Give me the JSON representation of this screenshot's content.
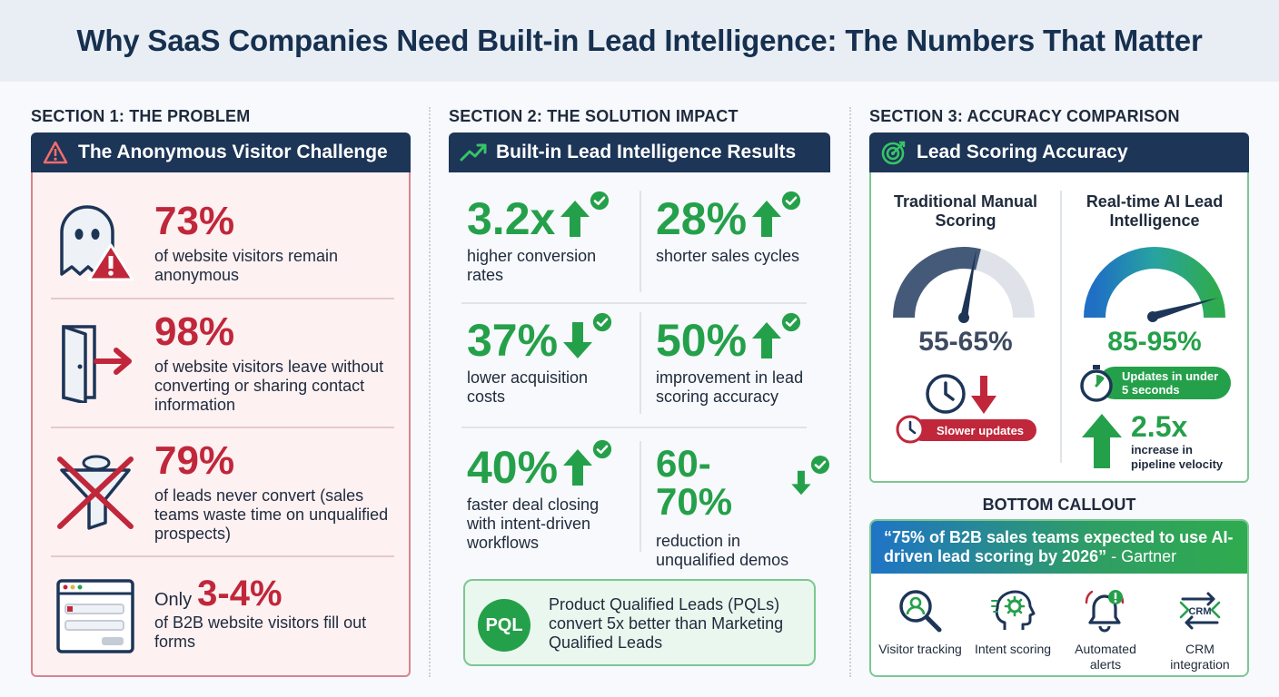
{
  "title": "Why SaaS Companies Need Built-in Lead Intelligence: The Numbers That Matter",
  "section1": {
    "label": "SECTION 1: THE PROBLEM",
    "header": "The Anonymous Visitor Challenge",
    "items": [
      {
        "value": "73%",
        "text": "of website visitors remain anonymous",
        "icon": "ghost-warning-icon"
      },
      {
        "value": "98%",
        "text": "of website visitors leave without converting or sharing contact information",
        "icon": "door-exit-icon"
      },
      {
        "value": "79%",
        "text": "of leads never convert (sales teams waste time on unqualified prospects)",
        "icon": "crossed-funnel-icon"
      },
      {
        "prefix": "Only",
        "value": "3-4%",
        "text": "of B2B website visitors fill out forms",
        "icon": "web-form-icon"
      }
    ],
    "colors": {
      "accent": "#c0273a",
      "panel_bg": "#fdf1f2"
    }
  },
  "section2": {
    "label": "SECTION 2: THE SOLUTION IMPACT",
    "header": "Built-in Lead Intelligence Results",
    "stats": [
      {
        "value": "3.2x",
        "text": "higher conversion rates",
        "direction": "up"
      },
      {
        "value": "28%",
        "text": "shorter sales cycles",
        "direction": "up"
      },
      {
        "value": "37%",
        "text": "lower acquisition costs",
        "direction": "down"
      },
      {
        "value": "50%",
        "text": "improvement in lead scoring accuracy",
        "direction": "up"
      },
      {
        "value": "40%",
        "text": "faster deal closing with intent-driven workflows",
        "direction": "up"
      },
      {
        "value": "60-70%",
        "text": "reduction in unqualified demos",
        "direction": "down"
      }
    ],
    "pql": {
      "badge": "PQL",
      "text": "Product Qualified Leads (PQLs) convert 5x better than Marketing Qualified Leads"
    },
    "colors": {
      "accent": "#25a04a"
    }
  },
  "section3": {
    "label": "SECTION 3: ACCURACY COMPARISON",
    "header": "Lead Scoring Accuracy",
    "traditional": {
      "title": "Traditional Manual Scoring",
      "range": "55-65%",
      "pill": "Slower updates"
    },
    "ai": {
      "title": "Real-time AI Lead Intelligence",
      "range": "85-95%",
      "pill": "Updates in under 5 seconds",
      "multiplier": "2.5x",
      "multiplier_text": "increase in pipeline velocity"
    }
  },
  "bottom": {
    "label": "BOTTOM CALLOUT",
    "quote": "“75% of B2B sales teams expected to use AI-driven lead scoring by 2026”",
    "source": "- Gartner",
    "features": [
      {
        "label": "Visitor tracking",
        "icon": "visitor-magnifier-icon"
      },
      {
        "label": "Intent scoring",
        "icon": "brain-gear-icon"
      },
      {
        "label": "Automated alerts",
        "icon": "bell-alert-icon"
      },
      {
        "label": "CRM integration",
        "icon": "crm-sync-icon",
        "icon_text": "CRM"
      }
    ]
  }
}
